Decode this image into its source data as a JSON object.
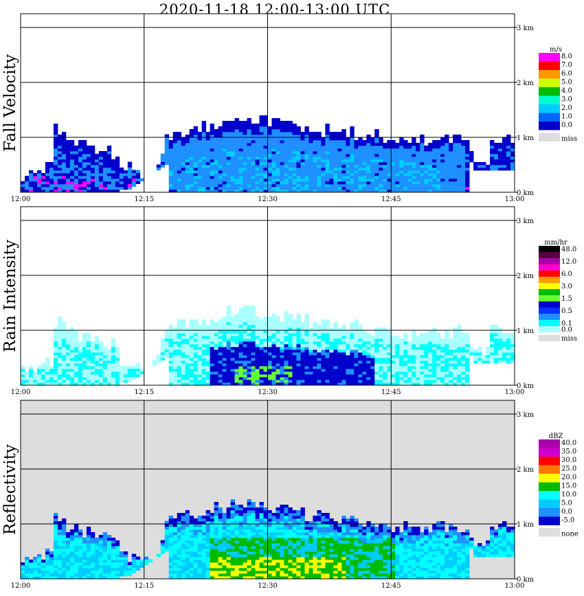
{
  "chart_data": {
    "title": "2020-11-18   12:00-13:00 UTC",
    "type": "heatmap",
    "x_ticks": [
      "12:00",
      "12:15",
      "12:30",
      "12:45",
      "13:00"
    ],
    "y_ticks": [
      "0 km",
      "1 km",
      "2 km",
      "3 km"
    ],
    "panels": [
      {
        "ylabel": "Fall Velocity",
        "unit": "m/s",
        "background": "#ffffff",
        "legend": [
          {
            "label": "8.0",
            "color": "#ff00ff"
          },
          {
            "label": "7.0",
            "color": "#ff0000"
          },
          {
            "label": "6.0",
            "color": "#ff9900"
          },
          {
            "label": "5.0",
            "color": "#ccff00"
          },
          {
            "label": "4.0",
            "color": "#00bb00"
          },
          {
            "label": "3.0",
            "color": "#00ffcc"
          },
          {
            "label": "2.0",
            "color": "#00ccff"
          },
          {
            "label": "1.0",
            "color": "#0066ff"
          },
          {
            "label": "0.0",
            "color": "#0000cc"
          },
          {
            "label": "miss",
            "color": "#dddddd"
          }
        ]
      },
      {
        "ylabel": "Rain Intensity",
        "unit": "mm/hr",
        "background": "#ffffff",
        "legend": [
          {
            "label": "48.0",
            "color": "#000000"
          },
          {
            "label": "",
            "color": "#550044"
          },
          {
            "label": "12.0",
            "color": "#aa00aa"
          },
          {
            "label": "",
            "color": "#ff00cc"
          },
          {
            "label": "6.0",
            "color": "#ff0000"
          },
          {
            "label": "",
            "color": "#ff9900"
          },
          {
            "label": "3.0",
            "color": "#ffff00"
          },
          {
            "label": "",
            "color": "#00bb00"
          },
          {
            "label": "1.5",
            "color": "#66ff33"
          },
          {
            "label": "",
            "color": "#0000cc"
          },
          {
            "label": "0.5",
            "color": "#0033ff"
          },
          {
            "label": "",
            "color": "#1e90ff"
          },
          {
            "label": "0.1",
            "color": "#00ffff"
          },
          {
            "label": "0.0",
            "color": "#aaffff"
          },
          {
            "label": "miss",
            "color": "#dddddd"
          }
        ]
      },
      {
        "ylabel": "Reflectivity",
        "unit": "dBZ",
        "background": "#dddddd",
        "legend": [
          {
            "label": "40.0",
            "color": "#aa00aa"
          },
          {
            "label": "35.0",
            "color": "#cc00cc"
          },
          {
            "label": "30.0",
            "color": "#ff0000"
          },
          {
            "label": "25.0",
            "color": "#ff7700"
          },
          {
            "label": "20.0",
            "color": "#ffff00"
          },
          {
            "label": "15.0",
            "color": "#00bb00"
          },
          {
            "label": "10.0",
            "color": "#00ffff"
          },
          {
            "label": "5.0",
            "color": "#00ccff"
          },
          {
            "label": "0.0",
            "color": "#1e90ff"
          },
          {
            "label": "-5.0",
            "color": "#0000cc"
          },
          {
            "label": "none",
            "color": "#dddddd"
          }
        ]
      }
    ]
  }
}
